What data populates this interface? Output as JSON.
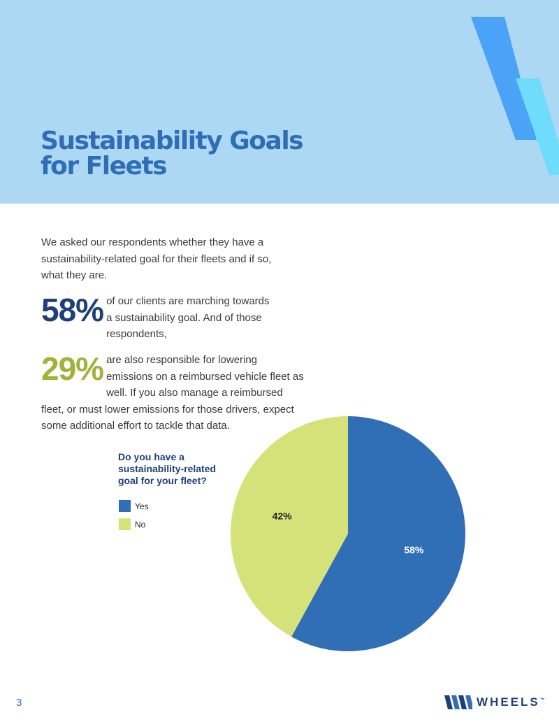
{
  "header": {
    "title_line1": "Sustainability Goals",
    "title_line2": "for Fleets"
  },
  "intro": "We asked our respondents whether they have a sustainability-related goal for their fleets and if so, what they are.",
  "stats": [
    {
      "value": "58%",
      "text": "of our clients are marching towards a sustainability goal. And of those respondents,"
    },
    {
      "value": "29%",
      "text": "are also responsible for lowering emissions on a reimbursed vehicle fleet as well. If you also manage a reimbursed fleet, or must lower emissions for those drivers, expect some additional effort to tackle that data."
    }
  ],
  "colors": {
    "yes": "#306eb6",
    "no": "#d5e27a",
    "brand_dark": "#1f3f78",
    "brand_green": "#9eb33a",
    "header_bg": "#acd8f4"
  },
  "chart_data": {
    "type": "pie",
    "title": "Do you have a sustainability-related goal for your fleet?",
    "categories": [
      "Yes",
      "No"
    ],
    "values": [
      58,
      42
    ],
    "labels": [
      "58%",
      "42%"
    ],
    "legend_placement": "left"
  },
  "footer": {
    "page_number": "3",
    "logo_text": "WHEELS",
    "logo_trademark": "™"
  }
}
